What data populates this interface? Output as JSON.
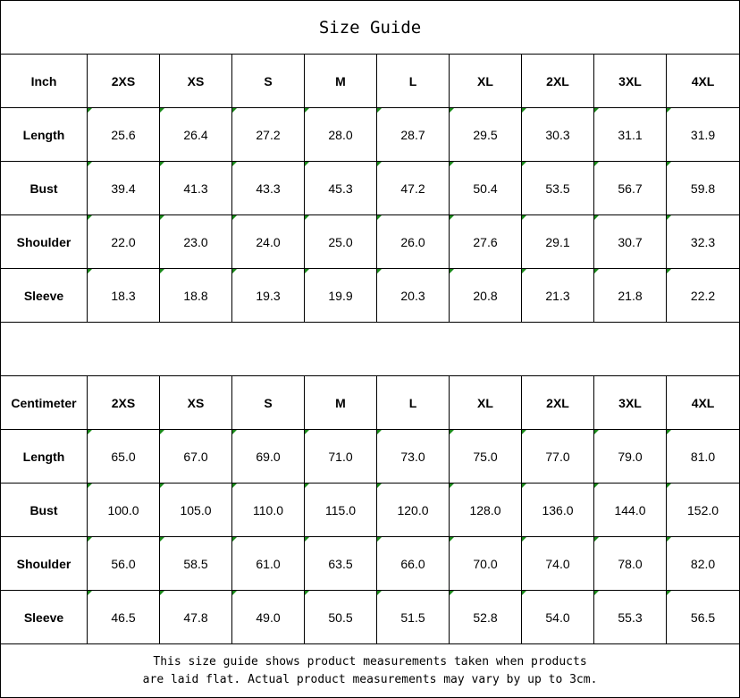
{
  "title": "Size Guide",
  "sizes": [
    "2XS",
    "XS",
    "S",
    "M",
    "L",
    "XL",
    "2XL",
    "3XL",
    "4XL"
  ],
  "tables": [
    {
      "unit": "Inch",
      "rows": [
        {
          "label": "Length",
          "values": [
            "25.6",
            "26.4",
            "27.2",
            "28.0",
            "28.7",
            "29.5",
            "30.3",
            "31.1",
            "31.9"
          ]
        },
        {
          "label": "Bust",
          "values": [
            "39.4",
            "41.3",
            "43.3",
            "45.3",
            "47.2",
            "50.4",
            "53.5",
            "56.7",
            "59.8"
          ]
        },
        {
          "label": "Shoulder",
          "values": [
            "22.0",
            "23.0",
            "24.0",
            "25.0",
            "26.0",
            "27.6",
            "29.1",
            "30.7",
            "32.3"
          ]
        },
        {
          "label": "Sleeve",
          "values": [
            "18.3",
            "18.8",
            "19.3",
            "19.9",
            "20.3",
            "20.8",
            "21.3",
            "21.8",
            "22.2"
          ]
        }
      ]
    },
    {
      "unit": "Centimeter",
      "rows": [
        {
          "label": "Length",
          "values": [
            "65.0",
            "67.0",
            "69.0",
            "71.0",
            "73.0",
            "75.0",
            "77.0",
            "79.0",
            "81.0"
          ]
        },
        {
          "label": "Bust",
          "values": [
            "100.0",
            "105.0",
            "110.0",
            "115.0",
            "120.0",
            "128.0",
            "136.0",
            "144.0",
            "152.0"
          ]
        },
        {
          "label": "Shoulder",
          "values": [
            "56.0",
            "58.5",
            "61.0",
            "63.5",
            "66.0",
            "70.0",
            "74.0",
            "78.0",
            "82.0"
          ]
        },
        {
          "label": "Sleeve",
          "values": [
            "46.5",
            "47.8",
            "49.0",
            "50.5",
            "51.5",
            "52.8",
            "54.0",
            "55.3",
            "56.5"
          ]
        }
      ]
    }
  ],
  "note": {
    "line1": "This size guide shows product measurements taken when products",
    "line2": "are laid flat. Actual product measurements may vary by up to 3cm."
  },
  "colors": {
    "cell_marker": "#1a8a1a",
    "border": "#000000"
  }
}
